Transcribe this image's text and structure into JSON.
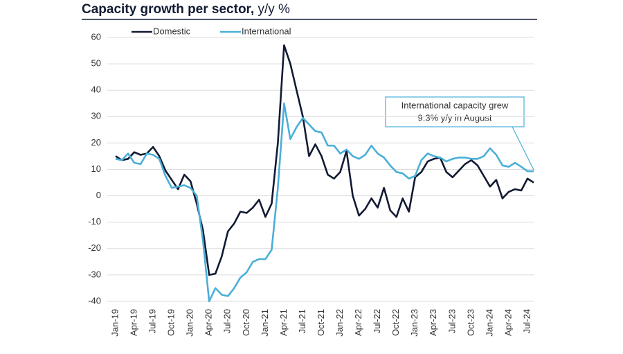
{
  "chart_data": {
    "type": "line",
    "title": [
      "Capacity growth per sector,",
      "y/y %"
    ],
    "categories": [
      "Jan-19",
      null,
      null,
      "Apr-19",
      null,
      null,
      "Jul-19",
      null,
      null,
      "Oct-19",
      null,
      null,
      "Jan-20",
      null,
      null,
      "Apr-20",
      null,
      null,
      "Jul-20",
      null,
      null,
      "Oct-20",
      null,
      null,
      "Jan-21",
      null,
      null,
      "Apr-21",
      null,
      null,
      "Jul-21",
      null,
      null,
      "Oct-21",
      null,
      null,
      "Jan-22",
      null,
      null,
      "Apr-22",
      null,
      null,
      "Jul-22",
      null,
      null,
      "Oct-22",
      null,
      null,
      "Jan-23",
      null,
      null,
      "Apr-23",
      null,
      null,
      "Jul-23",
      null,
      null,
      "Oct-23",
      null,
      null,
      "Jan-24",
      null,
      null,
      "Apr-24",
      null,
      null,
      "Jul-24",
      null
    ],
    "series": [
      {
        "name": "Domestic",
        "color": "#121a33",
        "values": [
          15,
          13.5,
          14,
          16.5,
          15.5,
          16,
          18.5,
          15,
          9.5,
          6,
          2.5,
          8,
          5.5,
          -3,
          -13,
          -30,
          -29.5,
          -23,
          -13.5,
          -10.5,
          -6,
          -6.5,
          -4.5,
          -1.5,
          -8,
          -3,
          20,
          57,
          50,
          40,
          30,
          15,
          19.5,
          15,
          8,
          6.5,
          9,
          17,
          0,
          -7.5,
          -5,
          -1,
          -4.5,
          3,
          -5.5,
          -8,
          -1,
          -6,
          7,
          9,
          13,
          14,
          14.5,
          9,
          7,
          9.5,
          12,
          13.5,
          11.5,
          7.5,
          3.5,
          6,
          -1,
          1.5,
          2.5,
          2,
          6.5,
          5
        ]
      },
      {
        "name": "International",
        "color": "#4aafd8",
        "values": [
          14,
          13.5,
          16,
          12.5,
          12,
          16,
          15.5,
          14,
          7.5,
          3,
          3.5,
          4,
          3,
          0,
          -17,
          -40,
          -35,
          -37.5,
          -38,
          -35,
          -31,
          -29,
          -25,
          -24,
          -24,
          -20.5,
          3,
          35,
          21.5,
          26,
          29.5,
          27,
          24.5,
          24,
          19,
          19,
          16,
          17.5,
          15,
          14,
          15.5,
          19,
          16,
          14.5,
          11.5,
          9,
          8.5,
          6.5,
          7.5,
          13.5,
          16,
          15,
          14.5,
          13,
          14,
          14.5,
          14.5,
          14,
          14,
          15,
          18,
          15.5,
          11.5,
          11,
          12.5,
          11,
          9.3,
          9.3
        ]
      }
    ],
    "ylim": [
      -40,
      60
    ],
    "yticks": [
      -40,
      -30,
      -20,
      -10,
      0,
      10,
      20,
      30,
      40,
      50,
      60
    ],
    "grid": true,
    "annotation": [
      "International capacity grew",
      "9.3% y/y in August"
    ]
  }
}
